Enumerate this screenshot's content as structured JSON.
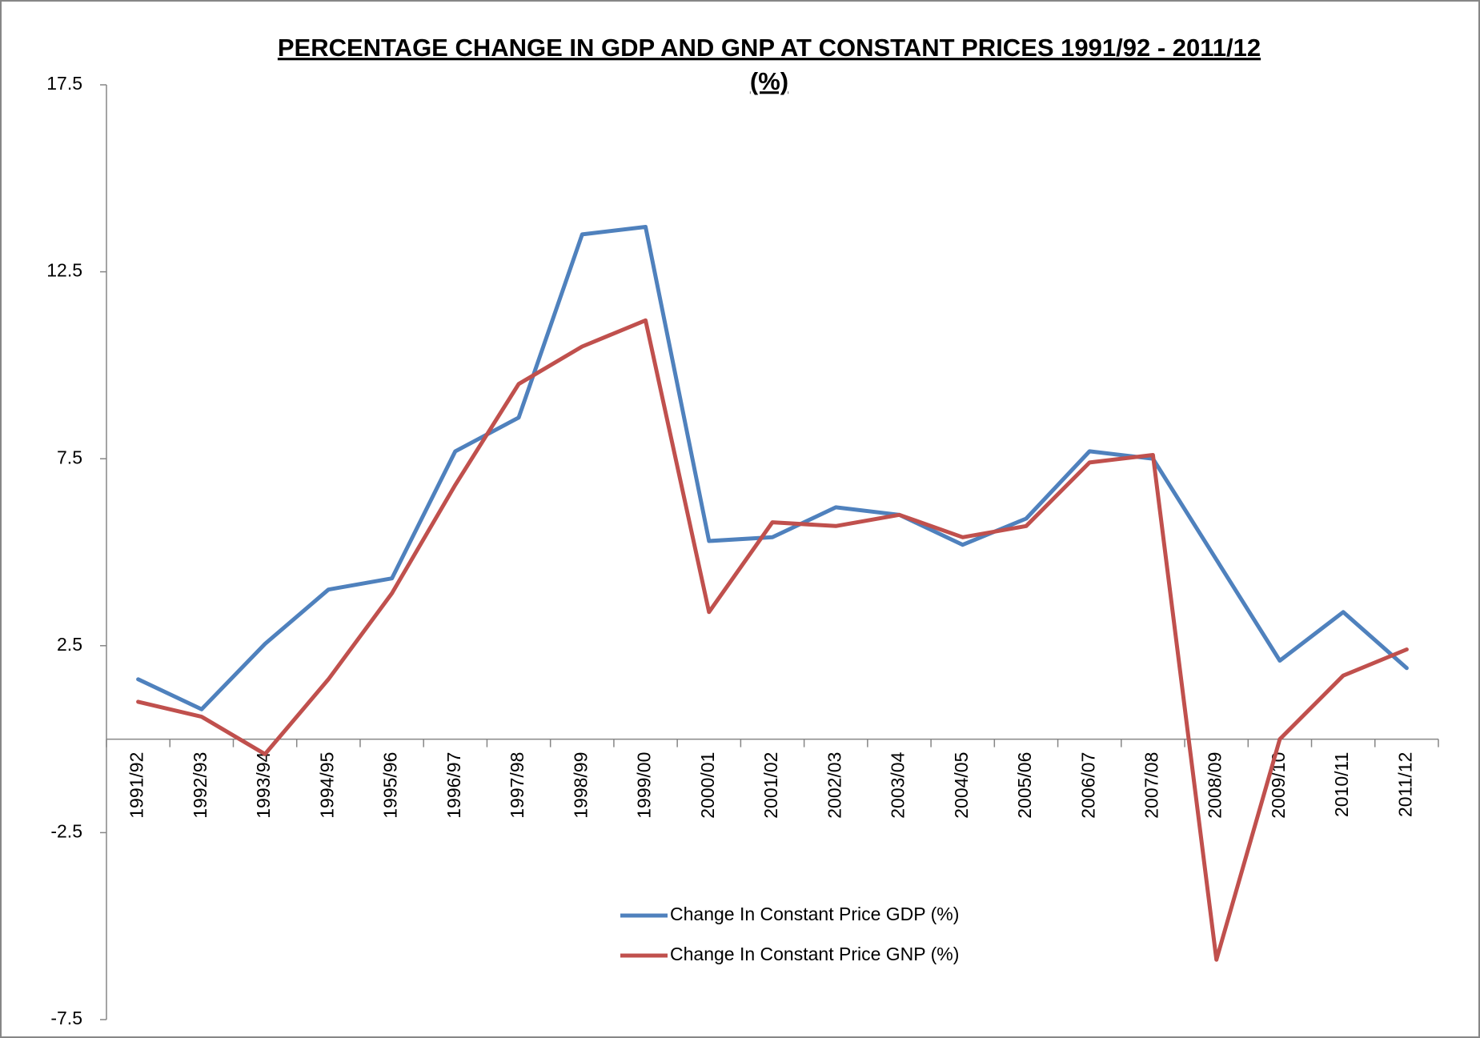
{
  "chart_data": {
    "type": "line",
    "title": [
      "PERCENTAGE CHANGE IN GDP AND GNP AT CONSTANT PRICES 1991/92 - 2011/12",
      "(%)"
    ],
    "categories": [
      "1991/92",
      "1992/93",
      "1993/94",
      "1994/95",
      "1995/96",
      "1996/97",
      "1997/98",
      "1998/99",
      "1999/00",
      "2000/01",
      "2001/02",
      "2002/03",
      "2003/04",
      "2004/05",
      "2005/06",
      "2006/07",
      "2007/08",
      "2008/09",
      "2009/10",
      "2010/11",
      "2011/12"
    ],
    "series": [
      {
        "name": "Change In Constant Price GDP (%)",
        "color": "#4f81bd",
        "values": [
          1.6,
          0.8,
          2.55,
          4.0,
          4.3,
          7.7,
          8.6,
          13.5,
          13.7,
          5.3,
          5.4,
          6.2,
          6.0,
          5.2,
          5.9,
          7.7,
          7.5,
          4.8,
          2.1,
          3.4,
          1.9
        ]
      },
      {
        "name": "Change In Constant Price GNP (%)",
        "color": "#c0504d",
        "values": [
          1.0,
          0.6,
          -0.4,
          1.6,
          3.9,
          6.8,
          9.5,
          10.5,
          11.2,
          3.4,
          5.8,
          5.7,
          6.0,
          5.4,
          5.7,
          7.4,
          7.6,
          -5.9,
          0.0,
          1.7,
          2.4
        ]
      }
    ],
    "ylim": [
      -7.5,
      17.5
    ],
    "yticks": [
      -7.5,
      -2.5,
      2.5,
      7.5,
      12.5,
      17.5
    ],
    "grid": false,
    "legend": "bottom"
  }
}
